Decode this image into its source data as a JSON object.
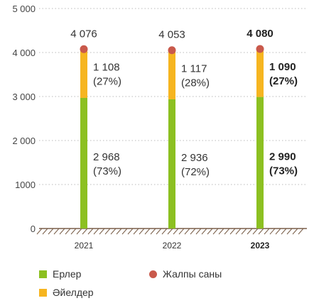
{
  "chart_data": {
    "type": "bar",
    "stacked": true,
    "categories": [
      "2021",
      "2022",
      "2023"
    ],
    "highlight_category": "2023",
    "ylim": [
      0,
      5000
    ],
    "yticks": [
      0,
      1000,
      2000,
      3000,
      4000,
      5000
    ],
    "ytick_labels": [
      "0",
      "1000",
      "2 000",
      "3 000",
      "4 000",
      "5 000"
    ],
    "grid": "horizontal dotted",
    "series": [
      {
        "name": "Ерлер",
        "color": "#8cc021",
        "values": [
          2968,
          2936,
          2990
        ],
        "labels": [
          [
            "2 968",
            "(73%)"
          ],
          [
            "2 936",
            "(72%)"
          ],
          [
            "2 990",
            "(73%)"
          ]
        ]
      },
      {
        "name": "Әйелдер",
        "color": "#f6b520",
        "values": [
          1108,
          1117,
          1090
        ],
        "labels": [
          [
            "1 108",
            "(27%)"
          ],
          [
            "1 117",
            "(28%)"
          ],
          [
            "1 090",
            "(27%)"
          ]
        ]
      }
    ],
    "totals": {
      "name": "Жалпы саны",
      "color": "#c9594b",
      "values": [
        4076,
        4053,
        4080
      ],
      "labels": [
        "4 076",
        "4 053",
        "4 080"
      ]
    },
    "legend_placement": "bottom"
  }
}
